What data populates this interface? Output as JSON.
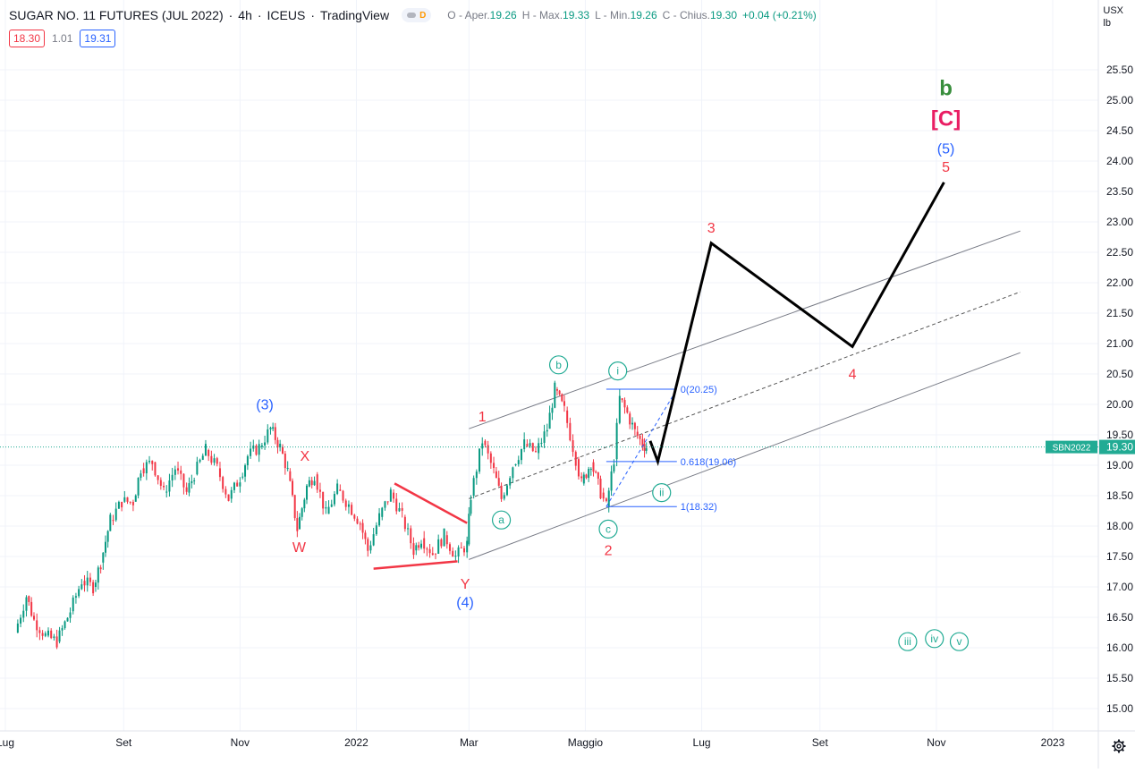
{
  "header": {
    "symbol": "SUGAR NO. 11 FUTURES (JUL 2022)",
    "interval": "4h",
    "exchange": "ICEUS",
    "platform": "TradingView",
    "badge": "D",
    "ohlc": {
      "open_label": "O - Aper.",
      "open": "19.26",
      "high_label": "H - Max.",
      "high": "19.33",
      "low_label": "L - Min.",
      "low": "19.26",
      "close_label": "C - Chius.",
      "close": "19.30",
      "change": "+0.04 (+0.21%)"
    }
  },
  "legend": {
    "bid": "18.30",
    "spread": "1.01",
    "ask": "19.31"
  },
  "axis_unit": {
    "currency": "USX",
    "unit": "lb"
  },
  "colors": {
    "up": "#089981",
    "down": "#f23645",
    "wave_green": "#22ab94",
    "wave_blue": "#2962ff",
    "wave_red": "#f23645",
    "wave_pink": "#e91e63",
    "wave_dark_green": "#388e3c",
    "fib_blue": "#2962ff",
    "last_price": "#22ab94"
  },
  "chart_data": {
    "type": "line",
    "y_axis": {
      "range": [
        14.75,
        26.3
      ],
      "ticks": [
        "25.50",
        "25.00",
        "24.50",
        "24.00",
        "23.50",
        "23.00",
        "22.50",
        "22.00",
        "21.50",
        "21.00",
        "20.50",
        "20.00",
        "19.50",
        "19.00",
        "18.50",
        "18.00",
        "17.50",
        "17.00",
        "16.50",
        "16.00",
        "15.50",
        "15.00"
      ]
    },
    "x_axis": {
      "ticks": [
        "Lug",
        "Set",
        "Nov",
        "2022",
        "Mar",
        "Maggio",
        "Lug",
        "Set",
        "Nov",
        "2023"
      ]
    },
    "last_price": {
      "label": "SBN2022",
      "value": 19.3
    },
    "price_series": [
      {
        "t": "2021-07-06",
        "v": 16.25
      },
      {
        "t": "2021-07-12",
        "v": 16.85
      },
      {
        "t": "2021-07-16",
        "v": 16.45
      },
      {
        "t": "2021-07-22",
        "v": 16.2
      },
      {
        "t": "2021-07-28",
        "v": 16.1
      },
      {
        "t": "2021-08-04",
        "v": 16.6
      },
      {
        "t": "2021-08-10",
        "v": 17.1
      },
      {
        "t": "2021-08-16",
        "v": 17.0
      },
      {
        "t": "2021-08-20",
        "v": 17.4
      },
      {
        "t": "2021-08-25",
        "v": 18.1
      },
      {
        "t": "2021-08-31",
        "v": 18.4
      },
      {
        "t": "2021-09-06",
        "v": 18.4
      },
      {
        "t": "2021-09-10",
        "v": 18.95
      },
      {
        "t": "2021-09-16",
        "v": 19.05
      },
      {
        "t": "2021-09-22",
        "v": 18.55
      },
      {
        "t": "2021-09-28",
        "v": 18.95
      },
      {
        "t": "2021-10-04",
        "v": 18.55
      },
      {
        "t": "2021-10-08",
        "v": 18.85
      },
      {
        "t": "2021-10-14",
        "v": 19.25
      },
      {
        "t": "2021-10-20",
        "v": 18.95
      },
      {
        "t": "2021-10-26",
        "v": 18.45
      },
      {
        "t": "2021-11-01",
        "v": 18.8
      },
      {
        "t": "2021-11-05",
        "v": 19.15
      },
      {
        "t": "2021-11-11",
        "v": 19.3
      },
      {
        "t": "2021-11-17",
        "v": 19.6
      },
      {
        "t": "2021-11-22",
        "v": 19.3
      },
      {
        "t": "2021-11-26",
        "v": 18.9
      },
      {
        "t": "2021-12-01",
        "v": 17.95
      },
      {
        "t": "2021-12-06",
        "v": 18.65
      },
      {
        "t": "2021-12-10",
        "v": 18.85
      },
      {
        "t": "2021-12-16",
        "v": 18.2
      },
      {
        "t": "2021-12-22",
        "v": 18.6
      },
      {
        "t": "2021-12-28",
        "v": 18.35
      },
      {
        "t": "2022-01-03",
        "v": 18.05
      },
      {
        "t": "2022-01-07",
        "v": 17.6
      },
      {
        "t": "2022-01-13",
        "v": 18.15
      },
      {
        "t": "2022-01-19",
        "v": 18.55
      },
      {
        "t": "2022-01-25",
        "v": 18.15
      },
      {
        "t": "2022-01-31",
        "v": 17.6
      },
      {
        "t": "2022-02-04",
        "v": 17.8
      },
      {
        "t": "2022-02-10",
        "v": 17.55
      },
      {
        "t": "2022-02-16",
        "v": 17.85
      },
      {
        "t": "2022-02-22",
        "v": 17.5
      },
      {
        "t": "2022-02-28",
        "v": 17.7
      },
      {
        "t": "2022-03-02",
        "v": 18.5
      },
      {
        "t": "2022-03-08",
        "v": 19.4
      },
      {
        "t": "2022-03-14",
        "v": 18.9
      },
      {
        "t": "2022-03-18",
        "v": 18.45
      },
      {
        "t": "2022-03-24",
        "v": 19.0
      },
      {
        "t": "2022-03-30",
        "v": 19.35
      },
      {
        "t": "2022-04-05",
        "v": 19.2
      },
      {
        "t": "2022-04-11",
        "v": 19.6
      },
      {
        "t": "2022-04-15",
        "v": 20.25
      },
      {
        "t": "2022-04-20",
        "v": 19.9
      },
      {
        "t": "2022-04-26",
        "v": 19.1
      },
      {
        "t": "2022-04-29",
        "v": 18.7
      },
      {
        "t": "2022-05-04",
        "v": 19.05
      },
      {
        "t": "2022-05-09",
        "v": 18.55
      },
      {
        "t": "2022-05-12",
        "v": 18.32
      },
      {
        "t": "2022-05-16",
        "v": 19.1
      },
      {
        "t": "2022-05-19",
        "v": 20.1
      },
      {
        "t": "2022-05-23",
        "v": 19.85
      },
      {
        "t": "2022-05-27",
        "v": 19.55
      },
      {
        "t": "2022-05-31",
        "v": 19.35
      },
      {
        "t": "2022-06-02",
        "v": 19.3
      }
    ],
    "projection": [
      {
        "t": "2022-06-04",
        "v": 19.4
      },
      {
        "t": "2022-06-08",
        "v": 19.06
      },
      {
        "t": "2022-07-06",
        "v": 22.65
      },
      {
        "t": "2022-09-18",
        "v": 20.95
      },
      {
        "t": "2022-11-05",
        "v": 23.65
      }
    ],
    "channel": {
      "upper": [
        {
          "t": "2022-03-01",
          "v": 19.6
        },
        {
          "t": "2022-12-15",
          "v": 22.85
        }
      ],
      "middle": [
        {
          "t": "2022-03-01",
          "v": 18.45
        },
        {
          "t": "2022-12-15",
          "v": 21.85
        }
      ],
      "lower": [
        {
          "t": "2022-03-01",
          "v": 17.45
        },
        {
          "t": "2022-12-15",
          "v": 20.85
        }
      ]
    },
    "triangle": {
      "upper": [
        {
          "t": "2022-01-21",
          "v": 18.7
        },
        {
          "t": "2022-02-28",
          "v": 18.05
        }
      ],
      "lower": [
        {
          "t": "2022-01-10",
          "v": 17.3
        },
        {
          "t": "2022-02-23",
          "v": 17.42
        }
      ]
    },
    "fib": {
      "levels": [
        {
          "ratio": "0",
          "price": 20.25,
          "label": "0(20.25)"
        },
        {
          "ratio": "0.618",
          "price": 19.06,
          "label": "0.618(19.06)"
        },
        {
          "ratio": "1",
          "price": 18.32,
          "label": "1(18.32)"
        }
      ],
      "start": "2022-05-12",
      "end": "2022-06-18",
      "trend": [
        {
          "t": "2022-05-12",
          "v": 18.32
        },
        {
          "t": "2022-06-18",
          "v": 20.25
        }
      ]
    },
    "wave_labels": [
      {
        "text": "(3)",
        "t": "2021-11-14",
        "v": 20.0,
        "style": "blue"
      },
      {
        "text": "X",
        "t": "2021-12-05",
        "v": 19.15,
        "style": "red"
      },
      {
        "text": "W",
        "t": "2021-12-02",
        "v": 17.65,
        "style": "red"
      },
      {
        "text": "Y",
        "t": "2022-02-27",
        "v": 17.05,
        "style": "red"
      },
      {
        "text": "(4)",
        "t": "2022-02-27",
        "v": 16.75,
        "style": "blue"
      },
      {
        "text": "1",
        "t": "2022-03-08",
        "v": 19.8,
        "style": "red"
      },
      {
        "text": "a",
        "t": "2022-03-18",
        "v": 18.1,
        "style": "circle"
      },
      {
        "text": "b",
        "t": "2022-04-17",
        "v": 20.65,
        "style": "circle"
      },
      {
        "text": "c",
        "t": "2022-05-13",
        "v": 17.95,
        "style": "circle"
      },
      {
        "text": "2",
        "t": "2022-05-13",
        "v": 17.6,
        "style": "red"
      },
      {
        "text": "i",
        "t": "2022-05-18",
        "v": 20.55,
        "style": "circle"
      },
      {
        "text": "ii",
        "t": "2022-06-10",
        "v": 18.55,
        "style": "circle"
      },
      {
        "text": "iii",
        "t": "2022-10-17",
        "v": 16.1,
        "style": "circle"
      },
      {
        "text": "iv",
        "t": "2022-10-31",
        "v": 16.15,
        "style": "circle"
      },
      {
        "text": "v",
        "t": "2022-11-13",
        "v": 16.1,
        "style": "circle"
      },
      {
        "text": "3",
        "t": "2022-07-06",
        "v": 22.9,
        "style": "red"
      },
      {
        "text": "4",
        "t": "2022-09-18",
        "v": 20.5,
        "style": "red"
      },
      {
        "text": "5",
        "t": "2022-11-06",
        "v": 23.9,
        "style": "red"
      },
      {
        "text": "(5)",
        "t": "2022-11-06",
        "v": 24.2,
        "style": "blue"
      },
      {
        "text": "[C]",
        "t": "2022-11-06",
        "v": 24.7,
        "style": "pink"
      },
      {
        "text": "b",
        "t": "2022-11-06",
        "v": 25.2,
        "style": "dkgreen"
      }
    ]
  }
}
